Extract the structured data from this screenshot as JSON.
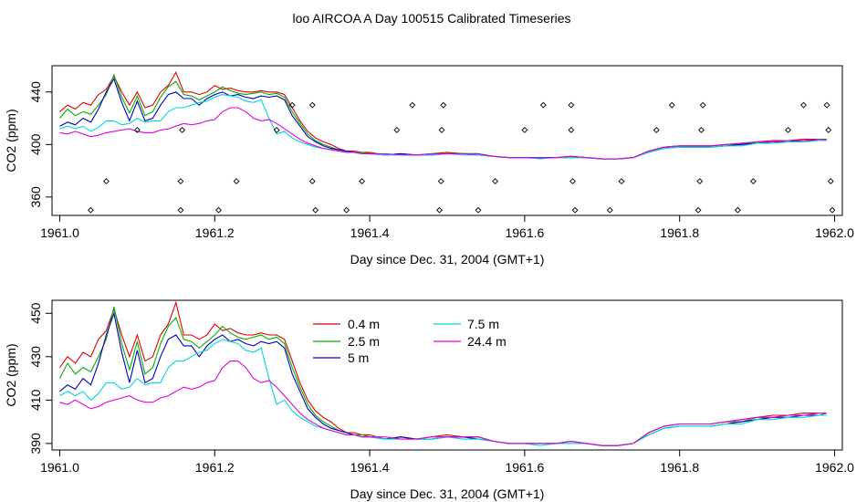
{
  "figure_title": "loo AIRCOA A  Day 100515  Calibrated Timeseries",
  "colors": {
    "0.4 m": "#e00000",
    "2.5 m": "#00b000",
    "5 m": "#0000c0",
    "7.5 m": "#00d8d8",
    "24.4 m": "#e000e0"
  },
  "chart_data": [
    {
      "type": "line",
      "title": "",
      "xlabel": "Day since Dec. 31, 2004 (GMT+1)",
      "ylabel": "CO2 (ppm)",
      "xlim": [
        1960.99,
        1962.01
      ],
      "ylim": [
        346,
        460
      ],
      "xticks": [
        "1961.0",
        "1961.2",
        "1961.4",
        "1961.6",
        "1961.8",
        "1962.0"
      ],
      "yticks": [
        "360",
        "400",
        "440"
      ],
      "grid": false,
      "legend": "none",
      "x": [
        1961.0,
        1961.01,
        1961.02,
        1961.03,
        1961.04,
        1961.05,
        1961.06,
        1961.07,
        1961.08,
        1961.09,
        1961.1,
        1961.11,
        1961.12,
        1961.13,
        1961.14,
        1961.15,
        1961.16,
        1961.17,
        1961.18,
        1961.19,
        1961.2,
        1961.21,
        1961.22,
        1961.23,
        1961.24,
        1961.25,
        1961.26,
        1961.27,
        1961.28,
        1961.29,
        1961.3,
        1961.31,
        1961.32,
        1961.33,
        1961.34,
        1961.35,
        1961.36,
        1961.37,
        1961.38,
        1961.39,
        1961.4,
        1961.42,
        1961.44,
        1961.46,
        1961.48,
        1961.5,
        1961.52,
        1961.54,
        1961.56,
        1961.58,
        1961.6,
        1961.62,
        1961.64,
        1961.66,
        1961.68,
        1961.7,
        1961.72,
        1961.74,
        1961.76,
        1961.78,
        1961.8,
        1961.82,
        1961.84,
        1961.86,
        1961.88,
        1961.9,
        1961.92,
        1961.94,
        1961.96,
        1961.98,
        1961.99
      ],
      "series": [
        {
          "name": "0.4 m",
          "values": [
            425,
            430,
            427,
            432,
            430,
            438,
            442,
            452,
            440,
            430,
            440,
            428,
            430,
            440,
            445,
            455,
            440,
            440,
            438,
            440,
            445,
            442,
            443,
            441,
            440,
            440,
            441,
            440,
            440,
            438,
            428,
            418,
            410,
            405,
            402,
            400,
            397,
            395,
            395,
            394,
            394,
            392,
            393,
            392,
            393,
            394,
            393,
            393,
            391,
            390,
            390,
            390,
            390,
            391,
            390,
            389,
            389,
            390,
            395,
            398,
            399,
            399,
            399,
            400,
            401,
            402,
            403,
            403,
            404,
            404,
            404
          ]
        },
        {
          "name": "2.5 m",
          "values": [
            420,
            427,
            422,
            425,
            423,
            430,
            438,
            453,
            436,
            424,
            437,
            422,
            425,
            436,
            444,
            448,
            438,
            437,
            434,
            437,
            440,
            444,
            441,
            439,
            438,
            439,
            440,
            438,
            439,
            436,
            425,
            416,
            408,
            403,
            400,
            398,
            396,
            395,
            394,
            394,
            393,
            392,
            393,
            392,
            392,
            393,
            393,
            393,
            391,
            390,
            390,
            390,
            390,
            390,
            390,
            389,
            389,
            390,
            395,
            398,
            399,
            399,
            399,
            400,
            400,
            402,
            402,
            403,
            403,
            403,
            404
          ]
        },
        {
          "name": "5 m",
          "values": [
            414,
            417,
            415,
            420,
            417,
            427,
            440,
            450,
            432,
            418,
            433,
            418,
            420,
            430,
            438,
            440,
            435,
            435,
            430,
            435,
            438,
            440,
            437,
            438,
            436,
            435,
            437,
            436,
            437,
            434,
            422,
            414,
            406,
            402,
            399,
            397,
            396,
            395,
            394,
            393,
            393,
            392,
            393,
            392,
            392,
            393,
            393,
            392,
            391,
            390,
            390,
            390,
            390,
            391,
            390,
            389,
            389,
            390,
            394,
            397,
            398,
            398,
            398,
            399,
            400,
            401,
            402,
            402,
            403,
            403,
            403
          ]
        },
        {
          "name": "7.5 m",
          "values": [
            412,
            414,
            412,
            414,
            410,
            413,
            418,
            418,
            415,
            416,
            420,
            417,
            418,
            418,
            425,
            428,
            428,
            430,
            432,
            433,
            436,
            438,
            437,
            436,
            433,
            432,
            434,
            420,
            408,
            410,
            405,
            402,
            400,
            398,
            397,
            396,
            395,
            394,
            394,
            393,
            393,
            392,
            392,
            392,
            392,
            393,
            392,
            392,
            391,
            390,
            390,
            389,
            390,
            390,
            390,
            389,
            389,
            390,
            394,
            397,
            398,
            398,
            398,
            399,
            399,
            401,
            401,
            402,
            402,
            403,
            403
          ]
        },
        {
          "name": "24.4 m",
          "values": [
            409,
            408,
            410,
            408,
            406,
            407,
            409,
            410,
            411,
            412,
            410,
            409,
            409,
            411,
            412,
            414,
            416,
            415,
            416,
            418,
            419,
            425,
            428,
            428,
            425,
            420,
            418,
            419,
            416,
            412,
            408,
            404,
            401,
            399,
            397,
            396,
            395,
            394,
            394,
            393,
            393,
            393,
            392,
            392,
            393,
            393,
            393,
            393,
            391,
            390,
            390,
            390,
            390,
            391,
            390,
            389,
            389,
            390,
            395,
            398,
            399,
            399,
            399,
            400,
            401,
            402,
            402,
            403,
            403,
            404,
            404
          ]
        }
      ],
      "flag_points": {
        "x": [
          1961.04,
          1961.06,
          1961.1,
          1961.156,
          1961.156,
          1961.158,
          1961.205,
          1961.228,
          1961.28,
          1961.3,
          1961.326,
          1961.326,
          1961.33,
          1961.37,
          1961.39,
          1961.435,
          1961.455,
          1961.49,
          1961.492,
          1961.493,
          1961.495,
          1961.54,
          1961.562,
          1961.6,
          1961.624,
          1961.66,
          1961.66,
          1961.662,
          1961.665,
          1961.71,
          1961.725,
          1961.77,
          1961.79,
          1961.824,
          1961.826,
          1961.828,
          1961.83,
          1961.875,
          1961.895,
          1961.94,
          1961.96,
          1961.99,
          1961.992,
          1961.995,
          1961.997
        ],
        "y": [
          350,
          372,
          411,
          350,
          372,
          411,
          350,
          372,
          411,
          430,
          430,
          372,
          350,
          350,
          372,
          411,
          430,
          350,
          372,
          411,
          430,
          350,
          372,
          411,
          430,
          430,
          411,
          372,
          350,
          350,
          372,
          411,
          430,
          350,
          372,
          411,
          430,
          350,
          372,
          411,
          430,
          430,
          411,
          372,
          350
        ]
      }
    },
    {
      "type": "line",
      "title": "",
      "xlabel": "Day since Dec. 31, 2004 (GMT+1)",
      "ylabel": "CO2 (ppm)",
      "xlim": [
        1960.99,
        1962.01
      ],
      "ylim": [
        387,
        456
      ],
      "xticks": [
        "1961.0",
        "1961.2",
        "1961.4",
        "1961.6",
        "1961.8",
        "1962.0"
      ],
      "yticks": [
        "390",
        "410",
        "430",
        "450"
      ],
      "grid": false,
      "legend": "top-center",
      "legend_entries": [
        "0.4 m",
        "2.5 m",
        "5 m",
        "7.5 m",
        "24.4 m"
      ],
      "x": "same as first chart",
      "series": "same as first chart"
    }
  ]
}
